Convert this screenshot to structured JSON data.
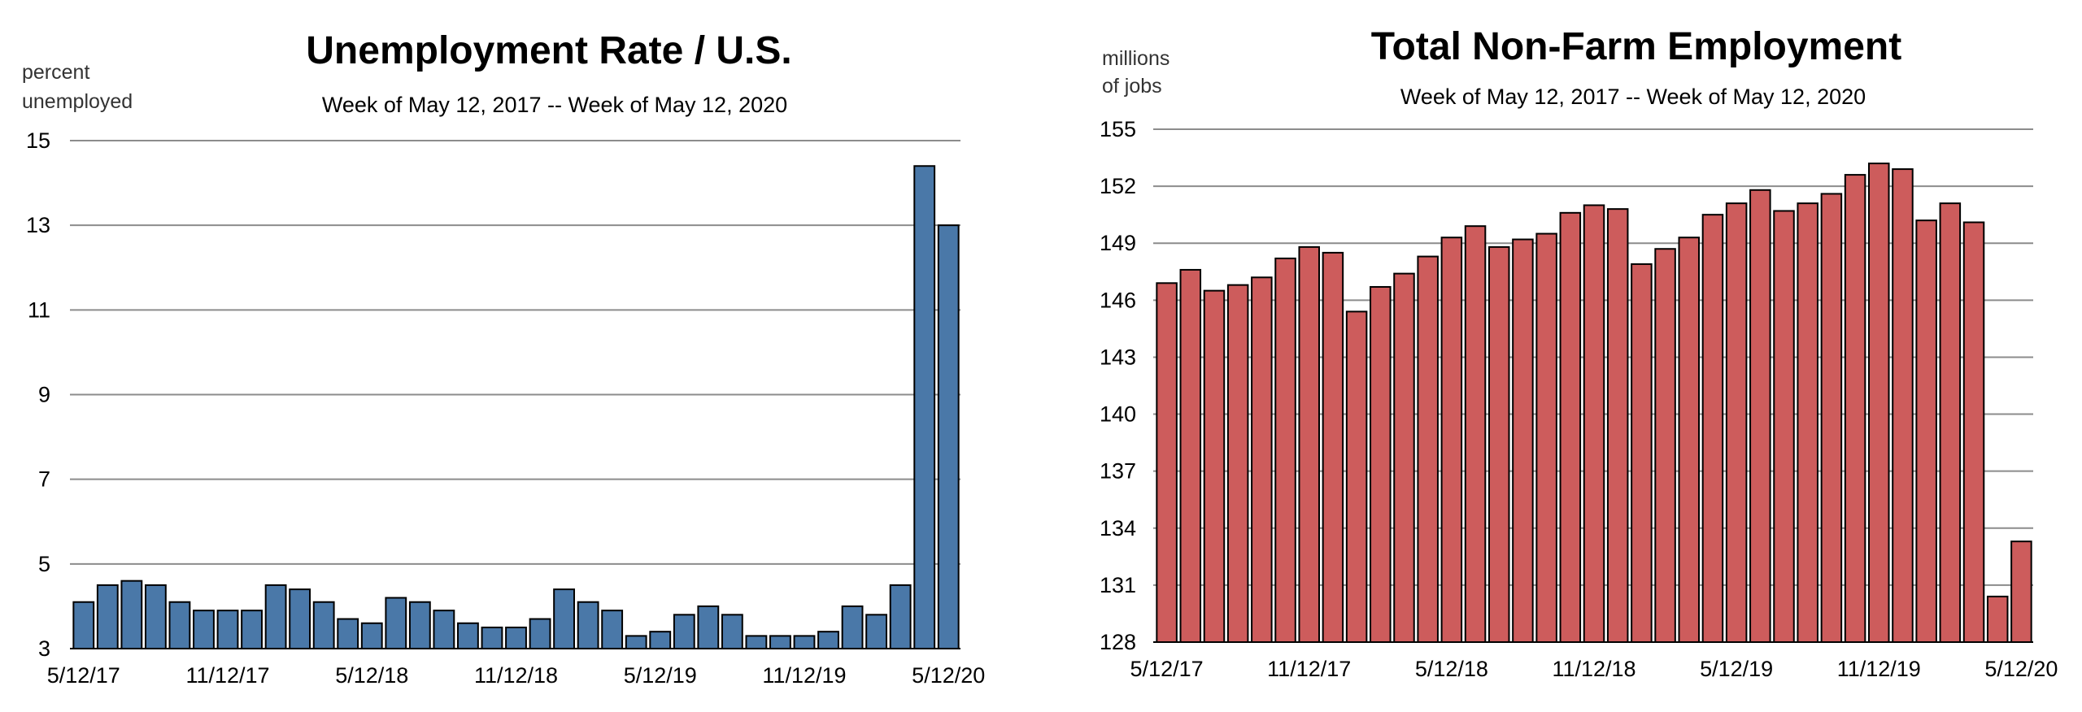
{
  "chart_data": [
    {
      "type": "bar",
      "title": "Unemployment Rate / U.S.",
      "subtitle": "Week of May 12, 2017 -- Week of May 12, 2020",
      "ylabel_line1": "percent",
      "ylabel_line2": "unemployed",
      "ylim": [
        3,
        15
      ],
      "yticks": [
        3,
        5,
        7,
        9,
        11,
        13,
        15
      ],
      "xtick_labels": [
        "5/12/17",
        "11/12/17",
        "5/12/18",
        "11/12/18",
        "5/12/19",
        "11/12/19",
        "5/12/20"
      ],
      "xtick_indices": [
        0,
        6,
        12,
        18,
        24,
        30,
        36
      ],
      "grid": true,
      "color": "#4a78a8",
      "values": [
        4.1,
        4.5,
        4.6,
        4.5,
        4.1,
        3.9,
        3.9,
        3.9,
        4.5,
        4.4,
        4.1,
        3.7,
        3.6,
        4.2,
        4.1,
        3.9,
        3.6,
        3.5,
        3.5,
        3.7,
        4.4,
        4.1,
        3.9,
        3.3,
        3.4,
        3.8,
        4.0,
        3.8,
        3.3,
        3.3,
        3.3,
        3.4,
        4.0,
        3.8,
        4.5,
        14.4,
        13.0
      ]
    },
    {
      "type": "bar",
      "title": "Total Non-Farm Employment",
      "subtitle": "Week of May 12, 2017 -- Week of May 12, 2020",
      "ylabel_line1": "millions",
      "ylabel_line2": "of jobs",
      "ylim": [
        128,
        155
      ],
      "yticks": [
        128,
        131,
        134,
        137,
        140,
        143,
        146,
        149,
        152,
        155
      ],
      "xtick_labels": [
        "5/12/17",
        "11/12/17",
        "5/12/18",
        "11/12/18",
        "5/12/19",
        "11/12/19",
        "5/12/20"
      ],
      "xtick_indices": [
        0,
        6,
        12,
        18,
        24,
        30,
        36
      ],
      "grid": true,
      "color": "#cd5c5c",
      "values": [
        146.9,
        147.6,
        146.5,
        146.8,
        147.2,
        148.2,
        148.8,
        148.5,
        145.4,
        146.7,
        147.4,
        148.3,
        149.3,
        149.9,
        148.8,
        149.2,
        149.5,
        150.6,
        151.0,
        150.8,
        147.9,
        148.7,
        149.3,
        150.5,
        151.1,
        151.8,
        150.7,
        151.1,
        151.6,
        152.6,
        153.2,
        152.9,
        150.2,
        151.1,
        150.1,
        130.4,
        133.3
      ]
    }
  ]
}
